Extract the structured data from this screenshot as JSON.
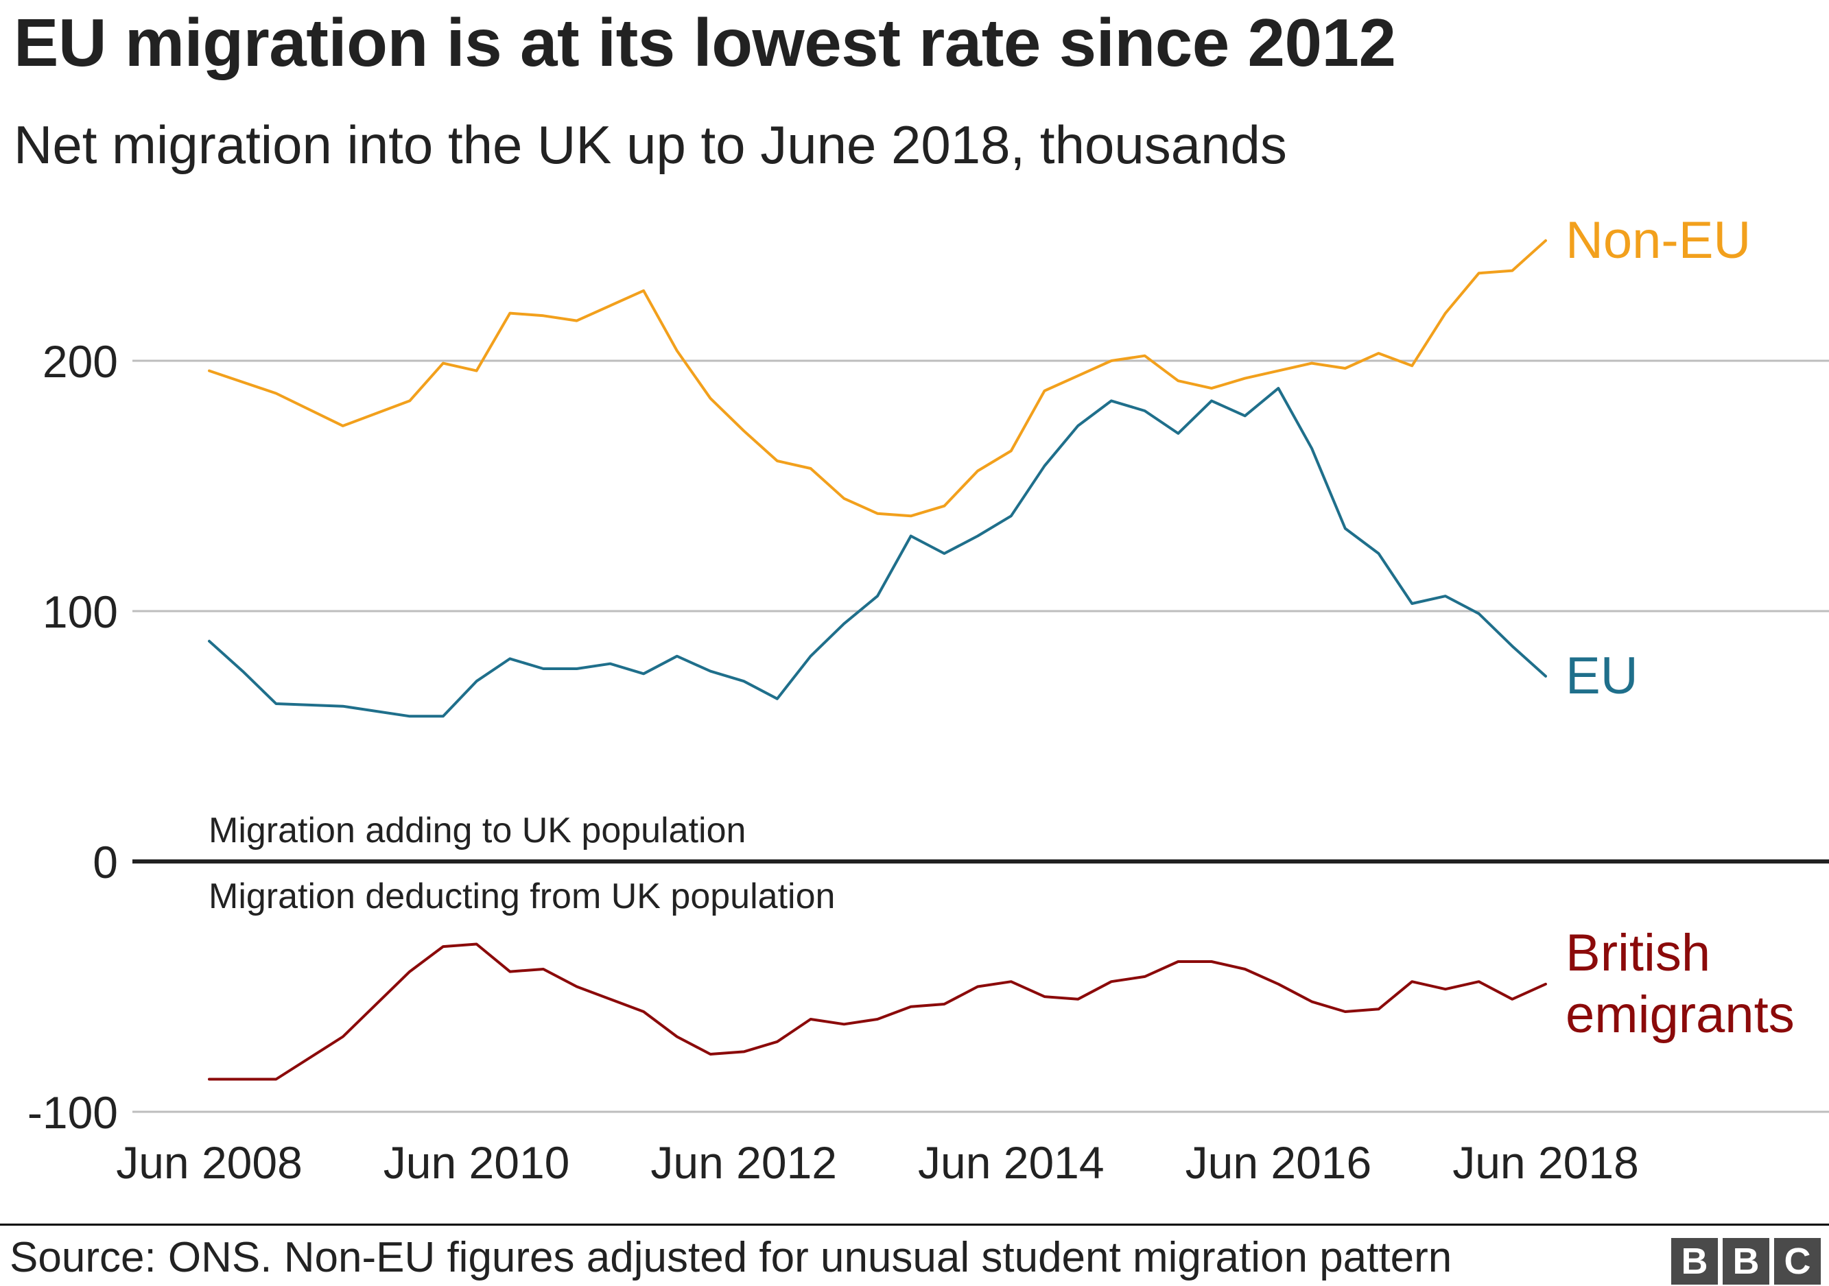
{
  "title": "EU migration is at its lowest rate since 2012",
  "subtitle": "Net migration into the UK up to June 2018, thousands",
  "source": "Source: ONS. Non-EU figures adjusted for unusual student migration pattern",
  "logo": {
    "letters": [
      "B",
      "B",
      "C"
    ],
    "color": "#4a4a4a"
  },
  "chart_data": {
    "type": "line",
    "title": "EU migration is at its lowest rate since 2012",
    "subtitle": "Net migration into the UK up to June 2018, thousands",
    "x_start": 2008.5,
    "x_end": 2018.5,
    "x_step": 0.25,
    "xlabel": "",
    "ylabel": "",
    "ylim": [
      -100,
      250
    ],
    "y_ticks": [
      200,
      100,
      0,
      -100
    ],
    "x_tick_labels": [
      {
        "label": "Jun 2008",
        "x": 2008.5
      },
      {
        "label": "Jun 2010",
        "x": 2010.5
      },
      {
        "label": "Jun 2012",
        "x": 2012.5
      },
      {
        "label": "Jun 2014",
        "x": 2014.5
      },
      {
        "label": "Jun 2016",
        "x": 2016.5
      },
      {
        "label": "Jun 2018",
        "x": 2018.5
      }
    ],
    "grid": true,
    "zero_line_labels": {
      "above": "Migration adding to UK population",
      "below": "Migration deducting from UK population"
    },
    "series": [
      {
        "name": "Non-EU",
        "label_lines": [
          "Non-EU"
        ],
        "color": "#f2a01c",
        "points": [
          [
            2008.5,
            196
          ],
          [
            2009.0,
            187
          ],
          [
            2009.5,
            174
          ],
          [
            2010.0,
            184
          ],
          [
            2010.25,
            199
          ],
          [
            2010.5,
            196
          ],
          [
            2010.75,
            219
          ],
          [
            2011.0,
            218
          ],
          [
            2011.25,
            216
          ],
          [
            2011.5,
            222
          ],
          [
            2011.75,
            228
          ],
          [
            2012.0,
            204
          ],
          [
            2012.25,
            185
          ],
          [
            2012.5,
            172
          ],
          [
            2012.75,
            160
          ],
          [
            2013.0,
            157
          ],
          [
            2013.25,
            145
          ],
          [
            2013.5,
            139
          ],
          [
            2013.75,
            138
          ],
          [
            2014.0,
            142
          ],
          [
            2014.25,
            156
          ],
          [
            2014.5,
            164
          ],
          [
            2014.75,
            188
          ],
          [
            2015.0,
            194
          ],
          [
            2015.25,
            200
          ],
          [
            2015.5,
            202
          ],
          [
            2015.75,
            192
          ],
          [
            2016.0,
            189
          ],
          [
            2016.25,
            193
          ],
          [
            2016.5,
            196
          ],
          [
            2016.75,
            199
          ],
          [
            2017.0,
            197
          ],
          [
            2017.25,
            203
          ],
          [
            2017.5,
            198
          ],
          [
            2017.75,
            219
          ],
          [
            2018.0,
            235
          ],
          [
            2018.25,
            236
          ],
          [
            2018.5,
            248
          ]
        ]
      },
      {
        "name": "EU",
        "label_lines": [
          "EU"
        ],
        "color": "#1f6f8b",
        "points": [
          [
            2008.5,
            88
          ],
          [
            2008.75,
            76
          ],
          [
            2009.0,
            63
          ],
          [
            2009.5,
            62
          ],
          [
            2010.0,
            58
          ],
          [
            2010.25,
            58
          ],
          [
            2010.5,
            72
          ],
          [
            2010.75,
            81
          ],
          [
            2011.0,
            77
          ],
          [
            2011.25,
            77
          ],
          [
            2011.5,
            79
          ],
          [
            2011.75,
            75
          ],
          [
            2012.0,
            82
          ],
          [
            2012.25,
            76
          ],
          [
            2012.5,
            72
          ],
          [
            2012.75,
            65
          ],
          [
            2013.0,
            82
          ],
          [
            2013.25,
            95
          ],
          [
            2013.5,
            106
          ],
          [
            2013.75,
            130
          ],
          [
            2014.0,
            123
          ],
          [
            2014.25,
            130
          ],
          [
            2014.5,
            138
          ],
          [
            2014.75,
            158
          ],
          [
            2015.0,
            174
          ],
          [
            2015.25,
            184
          ],
          [
            2015.5,
            180
          ],
          [
            2015.75,
            171
          ],
          [
            2016.0,
            184
          ],
          [
            2016.25,
            178
          ],
          [
            2016.5,
            189
          ],
          [
            2016.75,
            165
          ],
          [
            2017.0,
            133
          ],
          [
            2017.25,
            123
          ],
          [
            2017.5,
            103
          ],
          [
            2017.75,
            106
          ],
          [
            2018.0,
            99
          ],
          [
            2018.25,
            86
          ],
          [
            2018.5,
            74
          ]
        ]
      },
      {
        "name": "British emigrants",
        "label_lines": [
          "British",
          "emigrants"
        ],
        "color": "#8b0a0a",
        "points": [
          [
            2008.5,
            -87
          ],
          [
            2009.0,
            -87
          ],
          [
            2009.5,
            -70
          ],
          [
            2010.0,
            -44
          ],
          [
            2010.25,
            -34
          ],
          [
            2010.5,
            -33
          ],
          [
            2010.75,
            -44
          ],
          [
            2011.0,
            -43
          ],
          [
            2011.25,
            -50
          ],
          [
            2011.5,
            -55
          ],
          [
            2011.75,
            -60
          ],
          [
            2012.0,
            -70
          ],
          [
            2012.25,
            -77
          ],
          [
            2012.5,
            -76
          ],
          [
            2012.75,
            -72
          ],
          [
            2013.0,
            -63
          ],
          [
            2013.25,
            -65
          ],
          [
            2013.5,
            -63
          ],
          [
            2013.75,
            -58
          ],
          [
            2014.0,
            -57
          ],
          [
            2014.25,
            -50
          ],
          [
            2014.5,
            -48
          ],
          [
            2014.75,
            -54
          ],
          [
            2015.0,
            -55
          ],
          [
            2015.25,
            -48
          ],
          [
            2015.5,
            -46
          ],
          [
            2015.75,
            -40
          ],
          [
            2016.0,
            -40
          ],
          [
            2016.25,
            -43
          ],
          [
            2016.5,
            -49
          ],
          [
            2016.75,
            -56
          ],
          [
            2017.0,
            -60
          ],
          [
            2017.25,
            -59
          ],
          [
            2017.5,
            -48
          ],
          [
            2017.75,
            -51
          ],
          [
            2018.0,
            -48
          ],
          [
            2018.25,
            -55
          ],
          [
            2018.5,
            -49
          ]
        ]
      }
    ]
  }
}
